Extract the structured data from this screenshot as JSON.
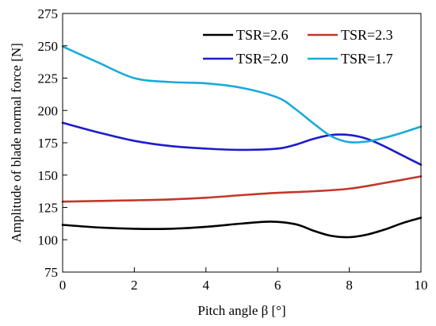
{
  "chart_data": {
    "type": "line",
    "xlabel": "Pitch angle β [°]",
    "ylabel": "Amplitude of blade normal force  [N]",
    "xlim": [
      0,
      10
    ],
    "ylim": [
      75,
      275
    ],
    "xticks": [
      0,
      2,
      4,
      6,
      8,
      10
    ],
    "yticks": [
      75,
      100,
      125,
      150,
      175,
      200,
      225,
      250,
      275
    ],
    "grid": false,
    "legend_position": "top-right",
    "series": [
      {
        "name": "TSR=2.6",
        "color": "#000000",
        "x": [
          0,
          1,
          2,
          3,
          4,
          5,
          5.8,
          6.5,
          7,
          7.5,
          8,
          8.5,
          9,
          9.5,
          10
        ],
        "y": [
          111.5,
          109.5,
          108.5,
          108.5,
          110,
          112.5,
          114,
          112,
          107,
          103,
          102,
          104,
          108,
          113,
          117
        ]
      },
      {
        "name": "TSR=2.3",
        "color": "#c0392b",
        "x": [
          0,
          1,
          2,
          3,
          4,
          5,
          6,
          7,
          8,
          9,
          10
        ],
        "y": [
          129.5,
          130,
          130.5,
          131.2,
          132.5,
          134.5,
          136.3,
          137.5,
          139.5,
          144,
          149
        ]
      },
      {
        "name": "TSR=2.0",
        "color": "#1c1ccc",
        "x": [
          0,
          1,
          2,
          3,
          4,
          5,
          6,
          6.5,
          7,
          7.5,
          8,
          8.5,
          9,
          9.5,
          10
        ],
        "y": [
          190.5,
          183,
          176.5,
          172.5,
          170.5,
          169.5,
          170.5,
          173.5,
          178,
          181,
          181,
          178,
          172,
          165,
          158
        ]
      },
      {
        "name": "TSR=1.7",
        "color": "#1aaad8",
        "x": [
          0,
          1,
          2,
          3,
          4,
          5,
          6,
          6.5,
          7,
          7.5,
          8,
          8.5,
          9,
          9.5,
          10
        ],
        "y": [
          249.5,
          237,
          225,
          222,
          221,
          217.5,
          210,
          201,
          190,
          180,
          175.5,
          176,
          179,
          183,
          187.5
        ]
      }
    ]
  }
}
